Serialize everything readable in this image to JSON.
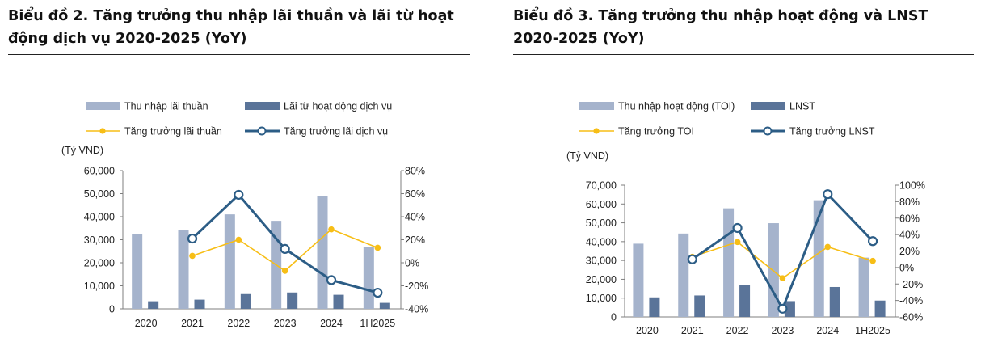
{
  "colors": {
    "bar_light": "#a5b3cc",
    "bar_dark": "#5a7499",
    "line_yellow": "#f7be16",
    "line_dark": "#2c5d86",
    "axis": "#7f7f7f"
  },
  "charts": [
    {
      "title": "Biểu đồ 2. Tăng trưởng thu nhập lãi thuần và lãi từ hoạt động dịch vụ 2020-2025 (YoY)"
    },
    {
      "title": "Biểu đồ 3. Tăng trưởng thu nhập hoạt động và LNST 2020-2025 (YoY)"
    }
  ],
  "chart_data": [
    {
      "type": "bar",
      "title": "Biểu đồ 2. Tăng trưởng thu nhập lãi thuần và lãi từ hoạt động dịch vụ 2020-2025 (YoY)",
      "categories": [
        "2020",
        "2021",
        "2022",
        "2023",
        "2024",
        "1H2025"
      ],
      "y_unit_label": "(Tỷ VND)",
      "ylim": [
        0,
        60000
      ],
      "yticks": [
        "60,000",
        "50,000",
        "40,000",
        "30,000",
        "20,000",
        "10,000",
        "0"
      ],
      "y2lim": [
        -40,
        80
      ],
      "y2ticks": [
        "80%",
        "60%",
        "40%",
        "20%",
        "0%",
        "-20%",
        "-40%"
      ],
      "legend": [
        "Thu nhập lãi thuần",
        "Lãi từ hoạt động dịch vụ",
        "Tăng trưởng lãi thuần",
        "Tăng trưởng lãi dịch vụ"
      ],
      "legend_position": "top",
      "series": [
        {
          "name": "Thu nhập lãi thuần",
          "kind": "bar",
          "axis": "left",
          "values": [
            32300,
            34300,
            41000,
            38200,
            49100,
            26800
          ]
        },
        {
          "name": "Lãi từ hoạt động dịch vụ",
          "kind": "bar",
          "axis": "left",
          "values": [
            3300,
            4000,
            6400,
            7100,
            6100,
            2600
          ]
        },
        {
          "name": "Tăng trưởng lãi thuần",
          "kind": "line",
          "axis": "right",
          "values": [
            null,
            6,
            20,
            -7,
            29,
            13
          ]
        },
        {
          "name": "Tăng trưởng lãi dịch vụ",
          "kind": "line",
          "axis": "right",
          "values": [
            null,
            21,
            59,
            12,
            -15,
            -26
          ]
        }
      ]
    },
    {
      "type": "bar",
      "title": "Biểu đồ 3. Tăng trưởng thu nhập hoạt động và LNST 2020-2025 (YoY)",
      "categories": [
        "2020",
        "2021",
        "2022",
        "2023",
        "2024",
        "1H2025"
      ],
      "y_unit_label": "(Tỷ VND)",
      "ylim": [
        0,
        70000
      ],
      "yticks": [
        "70,000",
        "60,000",
        "50,000",
        "40,000",
        "30,000",
        "20,000",
        "10,000",
        "0"
      ],
      "y2lim": [
        -60,
        100
      ],
      "y2ticks": [
        "100%",
        "80%",
        "60%",
        "40%",
        "20%",
        "0%",
        "-20%",
        "-40%",
        "-60%"
      ],
      "legend": [
        "Thu nhập hoạt động (TOI)",
        "LNST",
        "Tăng trưởng TOI",
        "Tăng trưởng LNST"
      ],
      "legend_position": "top",
      "series": [
        {
          "name": "Thu nhập hoạt động (TOI)",
          "kind": "bar",
          "axis": "left",
          "values": [
            38900,
            44300,
            57700,
            49800,
            62000,
            31500
          ]
        },
        {
          "name": "LNST",
          "kind": "bar",
          "axis": "left",
          "values": [
            10400,
            11400,
            17000,
            8400,
            15900,
            8700
          ]
        },
        {
          "name": "Tăng trưởng TOI",
          "kind": "line",
          "axis": "right",
          "values": [
            null,
            13,
            31,
            -13,
            25,
            8
          ]
        },
        {
          "name": "Tăng trưởng LNST",
          "kind": "line",
          "axis": "right",
          "values": [
            null,
            10,
            48,
            -50,
            89,
            32
          ]
        }
      ]
    }
  ]
}
